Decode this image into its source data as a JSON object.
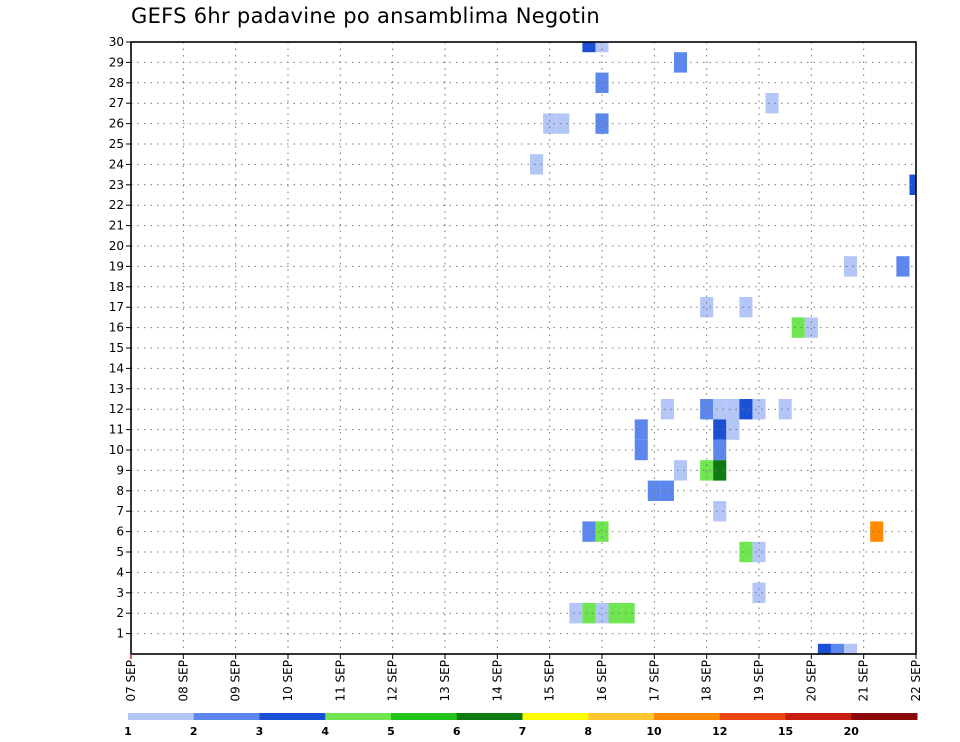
{
  "chart_data": {
    "type": "heatmap",
    "title": "GEFS 6hr padavine po ansamblima Negotin",
    "x_tick_labels": [
      "07 SEP",
      "08 SEP",
      "09 SEP",
      "10 SEP",
      "11 SEP",
      "12 SEP",
      "13 SEP",
      "14 SEP",
      "15 SEP",
      "16 SEP",
      "17 SEP",
      "18 SEP",
      "19 SEP",
      "20 SEP",
      "21 SEP",
      "22 SEP"
    ],
    "y_tick_labels": [
      "1",
      "2",
      "3",
      "4",
      "5",
      "6",
      "7",
      "8",
      "9",
      "10",
      "11",
      "12",
      "13",
      "14",
      "15",
      "16",
      "17",
      "18",
      "19",
      "20",
      "21",
      "22",
      "23",
      "24",
      "25",
      "26",
      "27",
      "28",
      "29",
      "30"
    ],
    "xlim_days": [
      7,
      22
    ],
    "ylim": [
      0,
      30
    ],
    "grid": true,
    "colorbar": {
      "levels": [
        "1",
        "2",
        "3",
        "4",
        "5",
        "6",
        "7",
        "8",
        "10",
        "12",
        "15",
        "20"
      ],
      "colors": [
        "#b3c6f7",
        "#5b87ee",
        "#1a4fd6",
        "#6fe650",
        "#22c41c",
        "#0f7a12",
        "#ffff00",
        "#ffc533",
        "#ff8a00",
        "#e8450f",
        "#c81e10",
        "#8a0a0a"
      ]
    },
    "cells": [
      {
        "day": 15.75,
        "member": 30,
        "cls": 3
      },
      {
        "day": 16.0,
        "member": 30,
        "cls": 1
      },
      {
        "day": 17.5,
        "member": 29,
        "cls": 2
      },
      {
        "day": 16.0,
        "member": 28,
        "cls": 2
      },
      {
        "day": 19.25,
        "member": 27,
        "cls": 1
      },
      {
        "day": 15.0,
        "member": 26,
        "cls": 1
      },
      {
        "day": 15.25,
        "member": 26,
        "cls": 1
      },
      {
        "day": 16.0,
        "member": 26,
        "cls": 2
      },
      {
        "day": 14.75,
        "member": 24,
        "cls": 1
      },
      {
        "day": 22.0,
        "member": 23,
        "cls": 3
      },
      {
        "day": 20.75,
        "member": 19,
        "cls": 1
      },
      {
        "day": 21.75,
        "member": 19,
        "cls": 2
      },
      {
        "day": 18.0,
        "member": 17,
        "cls": 1
      },
      {
        "day": 18.75,
        "member": 17,
        "cls": 1
      },
      {
        "day": 19.75,
        "member": 16,
        "cls": 4
      },
      {
        "day": 20.0,
        "member": 16,
        "cls": 1
      },
      {
        "day": 17.25,
        "member": 12,
        "cls": 1
      },
      {
        "day": 18.0,
        "member": 12,
        "cls": 2
      },
      {
        "day": 18.25,
        "member": 12,
        "cls": 1
      },
      {
        "day": 18.5,
        "member": 12,
        "cls": 1
      },
      {
        "day": 18.75,
        "member": 12,
        "cls": 3
      },
      {
        "day": 19.0,
        "member": 12,
        "cls": 1
      },
      {
        "day": 19.5,
        "member": 12,
        "cls": 1
      },
      {
        "day": 16.75,
        "member": 11,
        "cls": 2
      },
      {
        "day": 18.25,
        "member": 11,
        "cls": 3
      },
      {
        "day": 18.5,
        "member": 11,
        "cls": 1
      },
      {
        "day": 16.75,
        "member": 10,
        "cls": 2
      },
      {
        "day": 18.25,
        "member": 10,
        "cls": 2
      },
      {
        "day": 17.5,
        "member": 9,
        "cls": 1
      },
      {
        "day": 18.0,
        "member": 9,
        "cls": 4
      },
      {
        "day": 18.25,
        "member": 9,
        "cls": 6
      },
      {
        "day": 17.0,
        "member": 8,
        "cls": 2
      },
      {
        "day": 17.25,
        "member": 8,
        "cls": 2
      },
      {
        "day": 18.25,
        "member": 7,
        "cls": 1
      },
      {
        "day": 15.75,
        "member": 6,
        "cls": 2
      },
      {
        "day": 16.0,
        "member": 6,
        "cls": 4
      },
      {
        "day": 21.25,
        "member": 6,
        "cls": 9
      },
      {
        "day": 18.75,
        "member": 5,
        "cls": 4
      },
      {
        "day": 19.0,
        "member": 5,
        "cls": 1
      },
      {
        "day": 19.0,
        "member": 3,
        "cls": 1
      },
      {
        "day": 15.5,
        "member": 2,
        "cls": 1
      },
      {
        "day": 15.75,
        "member": 2,
        "cls": 4
      },
      {
        "day": 16.0,
        "member": 2,
        "cls": 1
      },
      {
        "day": 16.25,
        "member": 2,
        "cls": 4
      },
      {
        "day": 16.5,
        "member": 2,
        "cls": 4
      },
      {
        "day": 20.25,
        "member": 0,
        "cls": 3
      },
      {
        "day": 20.5,
        "member": 0,
        "cls": 2
      },
      {
        "day": 20.75,
        "member": 0,
        "cls": 1
      }
    ]
  }
}
